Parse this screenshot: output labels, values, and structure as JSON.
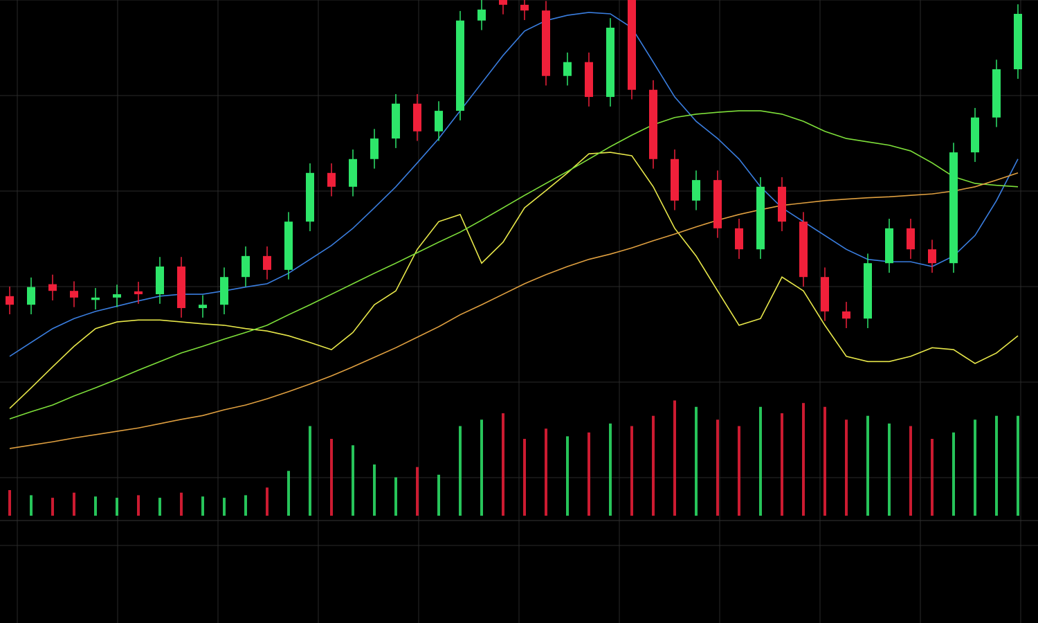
{
  "chart_data": [
    {
      "type": "candlestick",
      "ylim": [
        0,
        100
      ],
      "yticks": [
        0,
        20,
        40,
        60,
        80,
        100
      ],
      "grid": true,
      "up_color": "#2ee66a",
      "down_color": "#f0203a",
      "open": [
        38,
        36.2,
        40.5,
        39.1,
        37.2,
        37.7,
        39,
        38.4,
        44.2,
        35.5,
        36.2,
        42,
        46.4,
        43.5,
        53.6,
        63.8,
        60.9,
        66.7,
        71,
        78.3,
        72.5,
        76.8,
        95.7,
        100,
        99,
        97.8,
        84.1,
        87,
        79.7,
        100,
        81.2,
        66.7,
        58,
        62.3,
        52.2,
        47.8,
        60.9,
        53.6,
        42,
        34.8,
        33.3,
        44.9,
        52.2,
        47.8,
        44.9,
        68.1,
        75.4,
        85.5
      ],
      "high": [
        40,
        41.9,
        42.5,
        41.1,
        39.7,
        40.4,
        41,
        46.2,
        46.2,
        38.2,
        44,
        48.4,
        48.4,
        55.6,
        65.8,
        65.8,
        68.7,
        73,
        80.3,
        80.3,
        78.8,
        97.7,
        100,
        100,
        100,
        99.8,
        89,
        89,
        96.2,
        100,
        83.2,
        68.7,
        64.3,
        64.3,
        54.2,
        62.9,
        62.9,
        55.6,
        44,
        36.8,
        46.9,
        54.2,
        54.2,
        49.8,
        70.1,
        77.4,
        87.5,
        99.1
      ],
      "low": [
        34.2,
        34.2,
        37.1,
        35.7,
        35.2,
        35.7,
        36.4,
        36.4,
        33.5,
        33.5,
        34.2,
        40,
        41.5,
        41.5,
        51.6,
        58.9,
        58.9,
        64.7,
        69,
        70.5,
        70.5,
        74.8,
        93.7,
        97,
        95.8,
        82.1,
        82.1,
        77.7,
        77.7,
        79.2,
        64.7,
        56,
        56,
        50.2,
        45.8,
        45.8,
        51.6,
        40,
        32.8,
        31.3,
        31.3,
        42.9,
        45.8,
        42.9,
        42.9,
        66.1,
        73.4,
        83.5
      ],
      "close": [
        36.2,
        39.9,
        39.1,
        37.7,
        37.7,
        38.4,
        38.4,
        44.2,
        35.5,
        36.2,
        42,
        46.4,
        43.5,
        53.6,
        63.8,
        60.9,
        66.7,
        71,
        78.3,
        72.5,
        76.8,
        95.7,
        98,
        99,
        97.8,
        84.1,
        87,
        79.7,
        94.2,
        81.2,
        66.7,
        58,
        62.3,
        52.2,
        47.8,
        60.9,
        53.6,
        42,
        34.8,
        33.3,
        44.9,
        52.2,
        47.8,
        44.9,
        68.1,
        75.4,
        85.5,
        97.1
      ],
      "series": [
        {
          "color": "#e8e84a",
          "values": [
            14.5,
            18.8,
            23.2,
            27.5,
            31.2,
            32.6,
            33.0,
            33.0,
            32.6,
            32.2,
            31.9,
            31.2,
            30.7,
            29.7,
            28.3,
            26.8,
            30.4,
            36.2,
            39.1,
            47.8,
            53.6,
            55.1,
            44.9,
            49.3,
            56.5,
            60.1,
            63.8,
            67.8,
            68.1,
            67.4,
            60.9,
            52.2,
            46.4,
            39.1,
            31.9,
            33.3,
            42.0,
            39.1,
            31.9,
            25.4,
            24.3,
            24.3,
            25.4,
            27.2,
            26.8,
            23.9,
            26.1,
            29.7
          ]
        },
        {
          "color": "#3a7ee0",
          "values": [
            25.4,
            28.3,
            31.2,
            33.3,
            34.8,
            35.9,
            37.0,
            38.0,
            38.4,
            38.4,
            39.1,
            39.9,
            40.6,
            42.8,
            45.7,
            48.6,
            52.2,
            56.5,
            60.9,
            65.9,
            71.0,
            76.8,
            82.6,
            88.4,
            93.5,
            95.7,
            96.8,
            97.4,
            97.1,
            94.2,
            87.0,
            79.7,
            74.6,
            71.0,
            66.7,
            60.9,
            56.5,
            53.6,
            50.7,
            47.8,
            45.7,
            45.2,
            45.2,
            44.2,
            46.4,
            50.7,
            58.0,
            66.7
          ]
        },
        {
          "color": "#7ee03a",
          "values": [
            12.3,
            13.8,
            15.2,
            17.1,
            18.8,
            20.6,
            22.5,
            24.3,
            26.1,
            27.5,
            29.0,
            30.4,
            31.9,
            34.1,
            36.2,
            38.4,
            40.6,
            42.8,
            44.9,
            47.1,
            49.3,
            51.4,
            53.9,
            56.5,
            59.1,
            61.6,
            64.1,
            66.7,
            69.3,
            71.7,
            73.9,
            75.4,
            76.1,
            76.5,
            76.8,
            76.8,
            76.1,
            74.6,
            72.5,
            71.0,
            70.3,
            69.6,
            68.4,
            65.9,
            63.0,
            61.6,
            61.2,
            60.9
          ]
        },
        {
          "color": "#e0a040",
          "values": [
            6.1,
            6.8,
            7.5,
            8.3,
            9.0,
            9.7,
            10.4,
            11.3,
            12.2,
            13.0,
            14.2,
            15.2,
            16.5,
            18.0,
            19.6,
            21.3,
            23.2,
            25.2,
            27.2,
            29.4,
            31.6,
            34.1,
            36.2,
            38.4,
            40.6,
            42.5,
            44.2,
            45.7,
            46.8,
            48.1,
            49.6,
            51.0,
            52.5,
            53.9,
            55.1,
            56.1,
            57.0,
            57.5,
            58.0,
            58.3,
            58.6,
            58.8,
            59.1,
            59.4,
            60.0,
            60.9,
            62.3,
            63.8
          ]
        }
      ]
    },
    {
      "type": "bar",
      "ylim": [
        0,
        100
      ],
      "values": [
        20,
        16,
        14,
        18,
        15,
        14,
        16,
        14,
        18,
        15,
        14,
        16,
        22,
        35,
        70,
        60,
        55,
        40,
        30,
        38,
        32,
        70,
        75,
        80,
        60,
        68,
        62,
        65,
        72,
        70,
        78,
        90,
        85,
        75,
        70,
        85,
        80,
        88,
        85,
        75,
        78,
        72,
        70,
        60,
        65,
        75,
        78,
        78
      ]
    }
  ]
}
